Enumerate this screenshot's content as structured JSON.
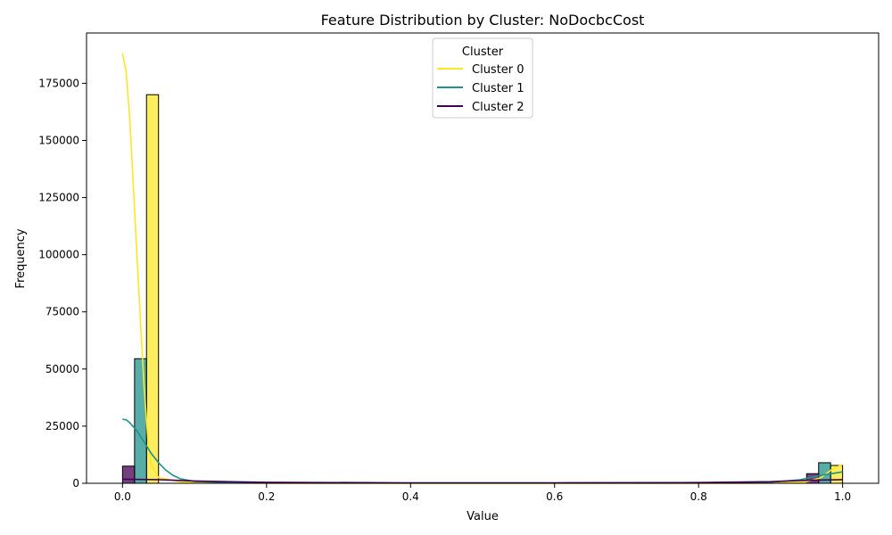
{
  "chart_data": {
    "type": "bar",
    "title": "Feature Distribution by Cluster: NoDocbcCost",
    "xlabel": "Value",
    "ylabel": "Frequency",
    "xlim": [
      -0.05,
      1.05
    ],
    "ylim": [
      0,
      197000
    ],
    "xticks": [
      0.0,
      0.2,
      0.4,
      0.6,
      0.8,
      1.0
    ],
    "xtick_labels": [
      "0.0",
      "0.2",
      "0.4",
      "0.6",
      "0.8",
      "1.0"
    ],
    "yticks": [
      0,
      25000,
      50000,
      75000,
      100000,
      125000,
      150000,
      175000
    ],
    "ytick_labels": [
      "0",
      "25000",
      "50000",
      "75000",
      "100000",
      "125000",
      "150000",
      "175000"
    ],
    "grid": false,
    "legend": {
      "title": "Cluster",
      "placement": "upper center"
    },
    "series": [
      {
        "name": "Cluster 0",
        "color": "#fde725",
        "bars": [
          {
            "x0": 0.0333,
            "x1": 0.05,
            "value": 170000
          },
          {
            "x0": 0.9833,
            "x1": 1.0,
            "value": 7800
          }
        ],
        "kde": [
          [
            0.0,
            188000
          ],
          [
            0.005,
            180000
          ],
          [
            0.01,
            160000
          ],
          [
            0.015,
            130000
          ],
          [
            0.02,
            100000
          ],
          [
            0.025,
            70000
          ],
          [
            0.03,
            42000
          ],
          [
            0.035,
            20000
          ],
          [
            0.04,
            8000
          ],
          [
            0.05,
            2500
          ],
          [
            0.08,
            600
          ],
          [
            0.2,
            0
          ],
          [
            0.9,
            0
          ],
          [
            0.95,
            700
          ],
          [
            0.97,
            2500
          ],
          [
            0.985,
            6000
          ],
          [
            1.0,
            8300
          ]
        ]
      },
      {
        "name": "Cluster 1",
        "color": "#21918c",
        "bars": [
          {
            "x0": 0.0167,
            "x1": 0.0333,
            "value": 54500
          },
          {
            "x0": 0.9667,
            "x1": 0.9833,
            "value": 9000
          }
        ],
        "kde": [
          [
            0.0,
            28000
          ],
          [
            0.005,
            27800
          ],
          [
            0.01,
            26500
          ],
          [
            0.02,
            23000
          ],
          [
            0.03,
            18000
          ],
          [
            0.04,
            13000
          ],
          [
            0.05,
            9000
          ],
          [
            0.06,
            5800
          ],
          [
            0.07,
            3500
          ],
          [
            0.08,
            2000
          ],
          [
            0.1,
            800
          ],
          [
            0.15,
            300
          ],
          [
            0.3,
            100
          ],
          [
            0.8,
            100
          ],
          [
            0.9,
            500
          ],
          [
            0.94,
            1500
          ],
          [
            0.97,
            3500
          ],
          [
            1.0,
            5000
          ]
        ]
      },
      {
        "name": "Cluster 2",
        "color": "#440154",
        "bars": [
          {
            "x0": 0.0,
            "x1": 0.0167,
            "value": 7500
          },
          {
            "x0": 0.95,
            "x1": 0.9667,
            "value": 4200
          }
        ],
        "kde": [
          [
            0.0,
            1800
          ],
          [
            0.05,
            1600
          ],
          [
            0.1,
            1000
          ],
          [
            0.2,
            400
          ],
          [
            0.4,
            200
          ],
          [
            0.6,
            200
          ],
          [
            0.8,
            300
          ],
          [
            0.9,
            700
          ],
          [
            0.95,
            1300
          ],
          [
            1.0,
            1600
          ]
        ]
      }
    ]
  }
}
